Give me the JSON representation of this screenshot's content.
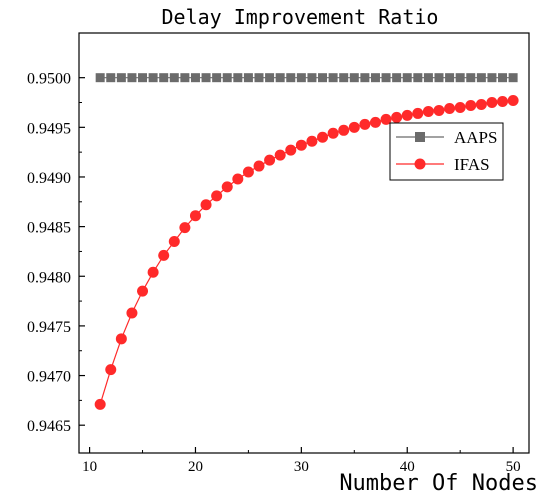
{
  "chart_data": {
    "type": "line",
    "title": "Delay Improvement Ratio",
    "xlabel": "Number Of Nodes",
    "ylabel": "",
    "xlim": [
      9,
      51.5
    ],
    "ylim": [
      0.94622,
      0.95045
    ],
    "x_ticks": [
      10,
      20,
      30,
      40,
      50
    ],
    "x_tick_labels": [
      "10",
      "20",
      "30",
      "40",
      "50"
    ],
    "y_ticks": [
      0.9465,
      0.947,
      0.9475,
      0.948,
      0.9485,
      0.949,
      0.9495,
      0.95
    ],
    "y_tick_labels": [
      "0.9465",
      "0.9470",
      "0.9475",
      "0.9480",
      "0.9485",
      "0.9490",
      "0.9495",
      "0.9500"
    ],
    "grid": false,
    "legend_position": "right",
    "x": [
      11,
      12,
      13,
      14,
      15,
      16,
      17,
      18,
      19,
      20,
      21,
      22,
      23,
      24,
      25,
      26,
      27,
      28,
      29,
      30,
      31,
      32,
      33,
      34,
      35,
      36,
      37,
      38,
      39,
      40,
      41,
      42,
      43,
      44,
      45,
      46,
      47,
      48,
      49,
      50
    ],
    "series": [
      {
        "name": "AAPS",
        "color": "#6b6b6b",
        "marker": "square",
        "values": [
          0.95,
          0.95,
          0.95,
          0.95,
          0.95,
          0.95,
          0.95,
          0.95,
          0.95,
          0.95,
          0.95,
          0.95,
          0.95,
          0.95,
          0.95,
          0.95,
          0.95,
          0.95,
          0.95,
          0.95,
          0.95,
          0.95,
          0.95,
          0.95,
          0.95,
          0.95,
          0.95,
          0.95,
          0.95,
          0.95,
          0.95,
          0.95,
          0.95,
          0.95,
          0.95,
          0.95,
          0.95,
          0.95,
          0.95,
          0.95
        ]
      },
      {
        "name": "IFAS",
        "color": "#ff2a2a",
        "marker": "circle",
        "values": [
          0.94671,
          0.94706,
          0.94737,
          0.94763,
          0.94785,
          0.94804,
          0.94821,
          0.94835,
          0.94849,
          0.94861,
          0.94872,
          0.94881,
          0.9489,
          0.94898,
          0.94905,
          0.94911,
          0.94917,
          0.94922,
          0.94927,
          0.94932,
          0.94936,
          0.9494,
          0.94944,
          0.94947,
          0.9495,
          0.94953,
          0.94955,
          0.94958,
          0.9496,
          0.94962,
          0.94964,
          0.94966,
          0.94967,
          0.94969,
          0.9497,
          0.94972,
          0.94973,
          0.94975,
          0.94976,
          0.94977
        ]
      }
    ]
  }
}
